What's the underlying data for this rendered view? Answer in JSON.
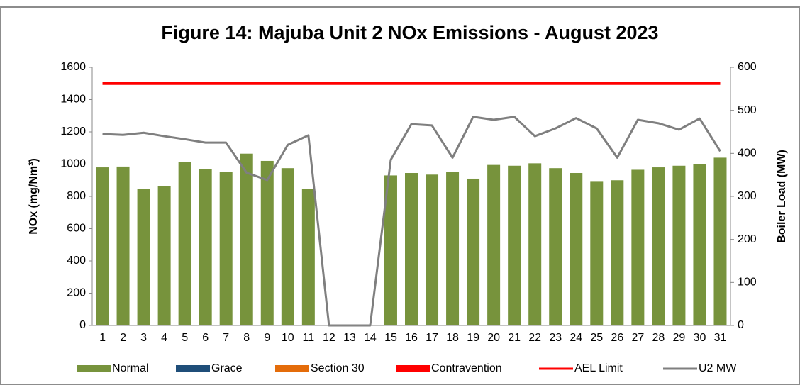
{
  "chart_data": {
    "type": "bar",
    "title": "Figure 14: Majuba Unit 2 NOx Emissions -  August 2023",
    "y_label": "NOx (mg/Nm³)",
    "y2_label": "Boiler Load (MW)",
    "categories": [
      "1",
      "2",
      "3",
      "4",
      "5",
      "6",
      "7",
      "8",
      "9",
      "10",
      "11",
      "12",
      "13",
      "14",
      "15",
      "16",
      "17",
      "18",
      "19",
      "20",
      "21",
      "22",
      "23",
      "24",
      "25",
      "26",
      "27",
      "28",
      "29",
      "30",
      "31"
    ],
    "ylim": [
      0,
      1600
    ],
    "yticks": [
      0,
      200,
      400,
      600,
      800,
      1000,
      1200,
      1400,
      1600
    ],
    "y2lim": [
      0,
      600
    ],
    "y2ticks": [
      0,
      100,
      200,
      300,
      400,
      500,
      600
    ],
    "series": [
      {
        "name": "Normal",
        "type": "bar",
        "color": "#77933c",
        "values": [
          980,
          985,
          848,
          862,
          1015,
          968,
          950,
          1065,
          1020,
          975,
          848,
          null,
          null,
          null,
          930,
          945,
          935,
          950,
          910,
          995,
          990,
          1005,
          975,
          945,
          895,
          900,
          965,
          980,
          990,
          1000,
          1040
        ]
      },
      {
        "name": "Grace",
        "type": "bar",
        "color": "#1f4e79",
        "values": [
          0,
          0,
          0,
          0,
          0,
          0,
          0,
          0,
          0,
          0,
          0,
          0,
          0,
          0,
          0,
          0,
          0,
          0,
          0,
          0,
          0,
          0,
          0,
          0,
          0,
          0,
          0,
          0,
          0,
          0,
          0
        ]
      },
      {
        "name": "Section 30",
        "type": "bar",
        "color": "#e46c0a",
        "values": [
          0,
          0,
          0,
          0,
          0,
          0,
          0,
          0,
          0,
          0,
          0,
          0,
          0,
          0,
          0,
          0,
          0,
          0,
          0,
          0,
          0,
          0,
          0,
          0,
          0,
          0,
          0,
          0,
          0,
          0,
          0
        ]
      },
      {
        "name": "Contravention",
        "type": "bar",
        "color": "#ff0000",
        "values": [
          0,
          0,
          0,
          0,
          0,
          0,
          0,
          0,
          0,
          0,
          0,
          0,
          0,
          0,
          0,
          0,
          0,
          0,
          0,
          0,
          0,
          0,
          0,
          0,
          0,
          0,
          0,
          0,
          0,
          0,
          0
        ]
      },
      {
        "name": "AEL Limit",
        "type": "line",
        "color": "#ff0000",
        "values": [
          1500,
          1500,
          1500,
          1500,
          1500,
          1500,
          1500,
          1500,
          1500,
          1500,
          1500,
          1500,
          1500,
          1500,
          1500,
          1500,
          1500,
          1500,
          1500,
          1500,
          1500,
          1500,
          1500,
          1500,
          1500,
          1500,
          1500,
          1500,
          1500,
          1500,
          1500
        ]
      },
      {
        "name": "U2 MW",
        "type": "line",
        "axis": "y2",
        "color": "#7f7f7f",
        "values": [
          445,
          443,
          448,
          440,
          433,
          425,
          425,
          355,
          338,
          420,
          442,
          0,
          0,
          0,
          385,
          468,
          465,
          390,
          485,
          478,
          485,
          440,
          458,
          482,
          458,
          390,
          478,
          470,
          455,
          481,
          405
        ]
      }
    ]
  }
}
